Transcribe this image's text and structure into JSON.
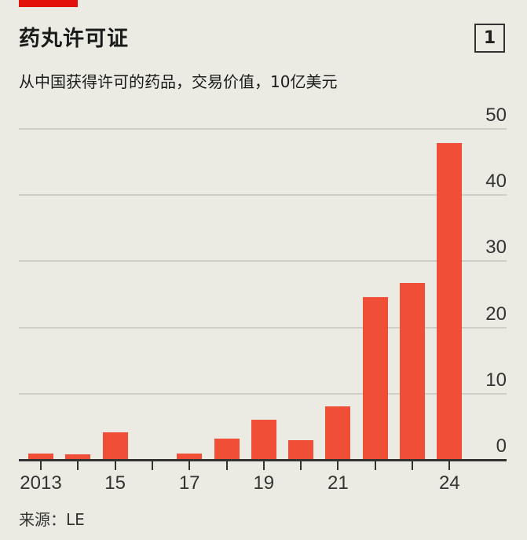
{
  "header": {
    "title": "药丸许可证",
    "figure_number": "1",
    "subtitle": "从中国获得许可的药品，交易价值，10亿美元"
  },
  "footer": {
    "source": "来源：LE"
  },
  "colors": {
    "accent": "#e3120b",
    "bar": "#f04e37",
    "background": "#ebebe3",
    "gridline": "#cfcfc7",
    "axis": "#333333"
  },
  "chart_data": {
    "type": "bar",
    "title": "药丸许可证",
    "subtitle": "从中国获得许可的药品，交易价值，10亿美元",
    "xlabel": "",
    "ylabel": "10亿美元",
    "categories": [
      "2013",
      "2014",
      "2015",
      "2016",
      "2017",
      "2018",
      "2019",
      "2020",
      "2021",
      "2022",
      "2023",
      "2024"
    ],
    "values": [
      1.0,
      0.8,
      4.2,
      0.1,
      1.0,
      3.2,
      6.0,
      3.0,
      8.1,
      24.6,
      26.7,
      47.9
    ],
    "x_tick_labels": [
      "2013",
      "15",
      "17",
      "19",
      "21",
      "24"
    ],
    "x_tick_label_positions": [
      0,
      2,
      4,
      6,
      8,
      11
    ],
    "y_ticks": [
      0,
      10,
      20,
      30,
      40,
      50
    ],
    "ylim": [
      0,
      50
    ],
    "y_axis_position": "right",
    "grid": true,
    "legend": null,
    "source": "来源：LE"
  }
}
